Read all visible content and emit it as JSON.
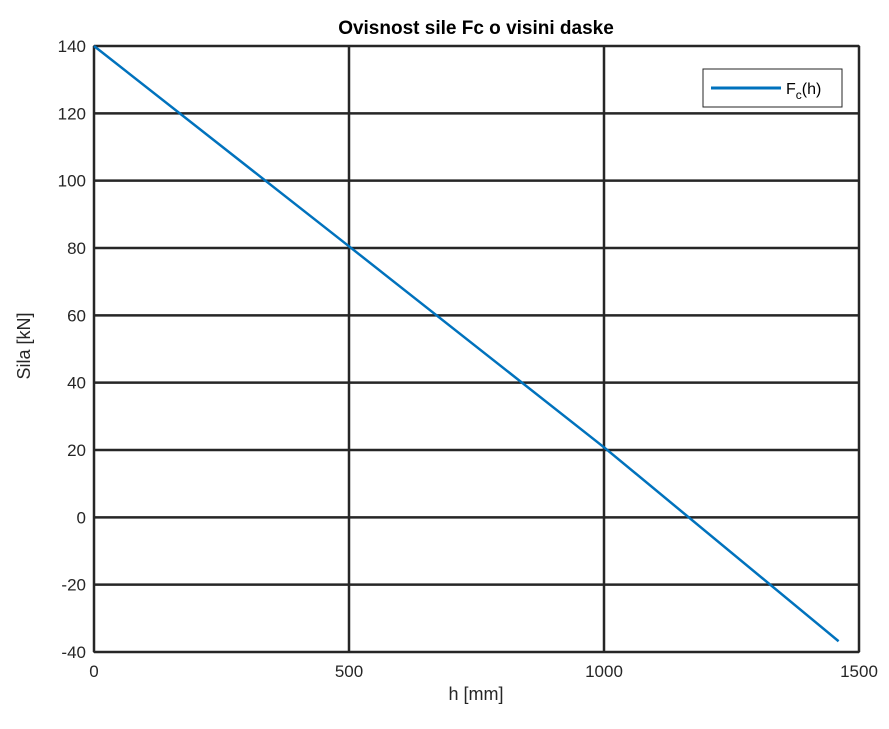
{
  "chart_data": {
    "type": "line",
    "title": "Ovisnost sile Fc o visini daske",
    "xlabel": "h [mm]",
    "ylabel": "Sila [kN]",
    "xlim": [
      0,
      1500
    ],
    "ylim": [
      -40,
      140
    ],
    "xticks": [
      0,
      500,
      1000,
      1500
    ],
    "xtick_labels": [
      "0",
      "500",
      "1000",
      "1500"
    ],
    "yticks": [
      -40,
      -20,
      0,
      20,
      40,
      60,
      80,
      100,
      120,
      140
    ],
    "ytick_labels": [
      "-40",
      "-20",
      "0",
      "20",
      "40",
      "60",
      "80",
      "100",
      "120",
      "140"
    ],
    "grid": true,
    "legend_position": "top-right",
    "series": [
      {
        "name": "F_c(h)",
        "name_main": "F",
        "name_sub": "c",
        "name_suffix": "(h)",
        "color": "#0072BD",
        "x": [
          0,
          500,
          1000,
          1460
        ],
        "y": [
          140,
          80.5,
          20.8,
          -36.8
        ]
      }
    ]
  }
}
